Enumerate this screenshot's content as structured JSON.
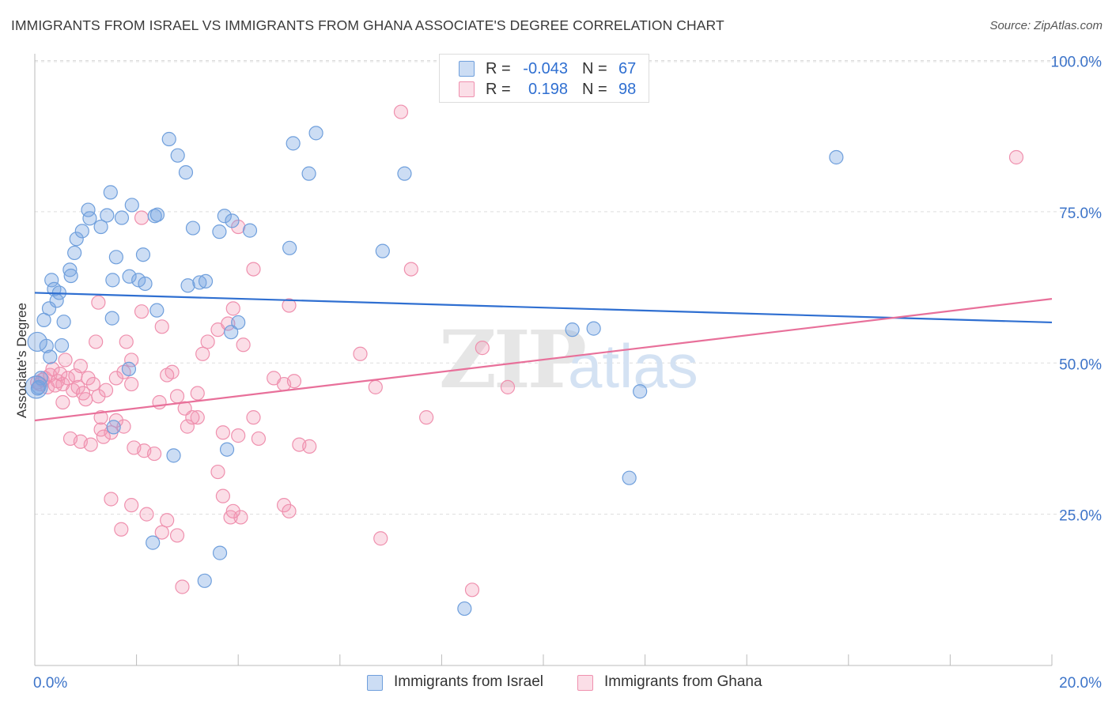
{
  "title": "IMMIGRANTS FROM ISRAEL VS IMMIGRANTS FROM GHANA ASSOCIATE'S DEGREE CORRELATION CHART",
  "source": "Source: ZipAtlas.com",
  "watermark": {
    "zip": "ZIP",
    "atlas": "atlas"
  },
  "legend_top": [
    {
      "r_label": "R =",
      "r_value": "-0.043",
      "n_label": "N =",
      "n_value": "67"
    },
    {
      "r_label": "R =",
      "r_value": "0.198",
      "n_label": "N =",
      "n_value": "98"
    }
  ],
  "bottom_legend": [
    {
      "label": "Immigrants from Israel"
    },
    {
      "label": "Immigrants from Ghana"
    }
  ],
  "colors": {
    "israel_fill": "rgba(120,166,227,0.38)",
    "israel_stroke": "#6f9fdc",
    "israel_line": "#2f6fd1",
    "ghana_fill": "rgba(244,152,180,0.32)",
    "ghana_stroke": "#ef90ae",
    "ghana_line": "#e8709a",
    "tick_text": "#3d74c9",
    "grid": "#dddddd"
  },
  "chart_data": {
    "type": "scatter",
    "title": "IMMIGRANTS FROM ISRAEL VS IMMIGRANTS FROM GHANA ASSOCIATE'S DEGREE CORRELATION CHART",
    "xlabel": "",
    "ylabel": "Associate's Degree",
    "xlim": [
      0,
      20
    ],
    "ylim": [
      0,
      100
    ],
    "x_tick_labels": [
      "0.0%",
      "20.0%"
    ],
    "y_ticks": [
      25,
      50,
      75,
      100
    ],
    "y_tick_labels": [
      "25.0%",
      "50.0%",
      "75.0%",
      "100.0%"
    ],
    "grid": true,
    "legend_position": "top-center",
    "series": [
      {
        "name": "Immigrants from Israel",
        "r": -0.043,
        "n": 67,
        "trend": {
          "x": [
            0,
            20
          ],
          "y": [
            61.6,
            56.7
          ]
        },
        "points": [
          [
            0.12,
            47.5
          ],
          [
            0.23,
            52.8
          ],
          [
            0.18,
            57.1
          ],
          [
            0.28,
            59.0
          ],
          [
            0.33,
            63.7
          ],
          [
            0.38,
            62.2
          ],
          [
            0.48,
            61.6
          ],
          [
            0.43,
            60.3
          ],
          [
            0.57,
            56.8
          ],
          [
            0.53,
            52.9
          ],
          [
            0.69,
            65.4
          ],
          [
            0.71,
            64.4
          ],
          [
            0.78,
            68.2
          ],
          [
            0.82,
            70.5
          ],
          [
            0.93,
            71.8
          ],
          [
            1.05,
            75.3
          ],
          [
            1.08,
            73.9
          ],
          [
            1.3,
            72.5
          ],
          [
            1.42,
            74.4
          ],
          [
            1.49,
            78.2
          ],
          [
            1.53,
            63.7
          ],
          [
            1.6,
            67.5
          ],
          [
            1.71,
            74.0
          ],
          [
            1.91,
            76.1
          ],
          [
            1.86,
            64.3
          ],
          [
            2.04,
            63.7
          ],
          [
            2.13,
            67.9
          ],
          [
            2.36,
            74.3
          ],
          [
            2.41,
            74.5
          ],
          [
            2.64,
            87.0
          ],
          [
            2.81,
            84.3
          ],
          [
            2.97,
            81.5
          ],
          [
            3.11,
            72.3
          ],
          [
            3.24,
            63.3
          ],
          [
            3.36,
            63.5
          ],
          [
            3.73,
            74.3
          ],
          [
            3.88,
            73.5
          ],
          [
            4.0,
            56.7
          ],
          [
            4.23,
            71.9
          ],
          [
            3.63,
            71.7
          ],
          [
            5.01,
            69.0
          ],
          [
            5.08,
            86.3
          ],
          [
            5.39,
            81.3
          ],
          [
            5.53,
            88.0
          ],
          [
            6.84,
            68.5
          ],
          [
            7.27,
            81.3
          ],
          [
            2.4,
            58.7
          ],
          [
            2.17,
            63.1
          ],
          [
            1.52,
            57.4
          ],
          [
            1.85,
            49.0
          ],
          [
            1.55,
            39.4
          ],
          [
            2.32,
            20.3
          ],
          [
            2.73,
            34.7
          ],
          [
            3.01,
            62.8
          ],
          [
            3.34,
            14.0
          ],
          [
            3.64,
            18.6
          ],
          [
            3.78,
            35.7
          ],
          [
            3.86,
            55.1
          ],
          [
            8.45,
            9.4
          ],
          [
            10.57,
            55.5
          ],
          [
            10.99,
            55.7
          ],
          [
            11.69,
            31.0
          ],
          [
            11.9,
            45.3
          ],
          [
            15.76,
            84.0
          ],
          [
            0.08,
            46.0
          ],
          [
            0.06,
            45.8
          ],
          [
            0.3,
            51.0
          ]
        ]
      },
      {
        "name": "Immigrants from Ghana",
        "r": 0.198,
        "n": 98,
        "trend": {
          "x": [
            0,
            20
          ],
          "y": [
            40.5,
            60.6
          ]
        },
        "points": [
          [
            0.1,
            46.5
          ],
          [
            0.2,
            47.5
          ],
          [
            0.3,
            48.0
          ],
          [
            0.25,
            46.0
          ],
          [
            0.45,
            47.0
          ],
          [
            0.55,
            46.5
          ],
          [
            0.65,
            47.5
          ],
          [
            0.75,
            45.5
          ],
          [
            0.85,
            46.0
          ],
          [
            0.95,
            45.0
          ],
          [
            1.05,
            47.5
          ],
          [
            1.15,
            46.5
          ],
          [
            0.35,
            49.0
          ],
          [
            0.6,
            50.5
          ],
          [
            0.9,
            49.5
          ],
          [
            1.25,
            44.5
          ],
          [
            1.4,
            45.5
          ],
          [
            1.6,
            47.5
          ],
          [
            1.75,
            48.5
          ],
          [
            1.9,
            46.5
          ],
          [
            0.55,
            43.5
          ],
          [
            0.7,
            37.5
          ],
          [
            0.9,
            37.0
          ],
          [
            1.1,
            36.5
          ],
          [
            1.3,
            39.0
          ],
          [
            1.5,
            38.5
          ],
          [
            1.75,
            39.5
          ],
          [
            1.6,
            40.5
          ],
          [
            1.95,
            36.0
          ],
          [
            2.15,
            35.5
          ],
          [
            2.35,
            35.0
          ],
          [
            1.3,
            41.0
          ],
          [
            1.8,
            53.5
          ],
          [
            1.9,
            50.5
          ],
          [
            1.2,
            53.5
          ],
          [
            1.25,
            60.0
          ],
          [
            2.1,
            58.5
          ],
          [
            2.1,
            74.0
          ],
          [
            2.5,
            56.0
          ],
          [
            2.7,
            48.5
          ],
          [
            2.8,
            44.5
          ],
          [
            2.95,
            42.5
          ],
          [
            3.0,
            39.5
          ],
          [
            3.2,
            41.0
          ],
          [
            3.1,
            41.0
          ],
          [
            3.3,
            51.5
          ],
          [
            3.4,
            53.5
          ],
          [
            3.6,
            55.5
          ],
          [
            3.8,
            56.5
          ],
          [
            3.9,
            59.0
          ],
          [
            4.0,
            72.5
          ],
          [
            4.3,
            65.5
          ],
          [
            4.1,
            53.0
          ],
          [
            4.3,
            41.0
          ],
          [
            4.4,
            37.5
          ],
          [
            4.0,
            38.0
          ],
          [
            3.7,
            38.5
          ],
          [
            4.7,
            47.5
          ],
          [
            4.9,
            46.5
          ],
          [
            5.1,
            47.0
          ],
          [
            5.0,
            59.5
          ],
          [
            5.2,
            36.5
          ],
          [
            3.6,
            32.0
          ],
          [
            3.7,
            28.0
          ],
          [
            3.85,
            24.5
          ],
          [
            4.05,
            24.5
          ],
          [
            3.9,
            25.5
          ],
          [
            2.6,
            24.0
          ],
          [
            2.2,
            25.0
          ],
          [
            1.9,
            26.5
          ],
          [
            1.5,
            27.5
          ],
          [
            1.7,
            22.5
          ],
          [
            2.5,
            22.0
          ],
          [
            2.8,
            21.5
          ],
          [
            2.9,
            13.0
          ],
          [
            4.9,
            26.5
          ],
          [
            5.0,
            25.5
          ],
          [
            6.8,
            21.0
          ],
          [
            6.4,
            51.5
          ],
          [
            6.7,
            46.0
          ],
          [
            7.2,
            91.5
          ],
          [
            7.4,
            65.5
          ],
          [
            7.7,
            41.0
          ],
          [
            8.6,
            12.5
          ],
          [
            8.8,
            52.5
          ],
          [
            9.3,
            46.0
          ],
          [
            19.3,
            84.0
          ],
          [
            0.05,
            46.8
          ],
          [
            0.15,
            47.2
          ],
          [
            0.4,
            46.3
          ],
          [
            0.5,
            48.2
          ],
          [
            0.8,
            47.9
          ],
          [
            1.0,
            44.0
          ],
          [
            2.6,
            48.0
          ],
          [
            3.2,
            45.0
          ],
          [
            2.45,
            43.5
          ],
          [
            1.35,
            37.8
          ],
          [
            5.4,
            36.2
          ]
        ]
      }
    ]
  }
}
